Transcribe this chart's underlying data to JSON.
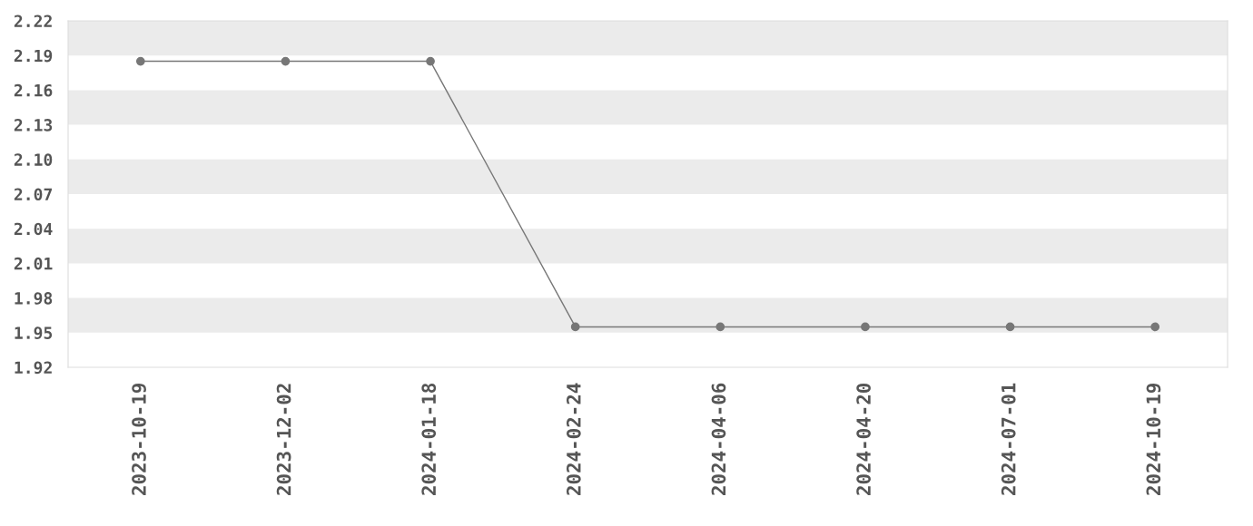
{
  "chart_data": {
    "type": "line",
    "categories": [
      "2023-10-19",
      "2023-12-02",
      "2024-01-18",
      "2024-02-24",
      "2024-04-06",
      "2024-04-20",
      "2024-07-01",
      "2024-10-19"
    ],
    "series": [
      {
        "color": "#777777",
        "values": [
          2.185,
          2.185,
          2.185,
          1.955,
          1.955,
          1.955,
          1.955,
          1.955
        ]
      }
    ],
    "ylim": [
      1.92,
      2.22
    ],
    "yticks": [
      {
        "value": 1.92,
        "label": "1.92"
      },
      {
        "value": 1.95,
        "label": "1.95"
      },
      {
        "value": 1.98,
        "label": "1.98"
      },
      {
        "value": 2.01,
        "label": "2.01"
      },
      {
        "value": 2.04,
        "label": "2.04"
      },
      {
        "value": 2.07,
        "label": "2.07"
      },
      {
        "value": 2.1,
        "label": "2.10"
      },
      {
        "value": 2.13,
        "label": "2.13"
      },
      {
        "value": 2.16,
        "label": "2.16"
      },
      {
        "value": 2.19,
        "label": "2.19"
      },
      {
        "value": 2.22,
        "label": "2.22"
      }
    ],
    "bands": [
      {
        "axis": "y",
        "from": 1.95,
        "to": 1.98,
        "color": "#ebebeb"
      },
      {
        "axis": "y",
        "from": 2.01,
        "to": 2.04,
        "color": "#ebebeb"
      },
      {
        "axis": "y",
        "from": 2.07,
        "to": 2.1,
        "color": "#ebebeb"
      },
      {
        "axis": "y",
        "from": 2.13,
        "to": 2.16,
        "color": "#ebebeb"
      },
      {
        "axis": "y",
        "from": 2.19,
        "to": 2.22,
        "color": "#ebebeb"
      }
    ],
    "marker": "circle",
    "line_style": "solid",
    "grid": false
  }
}
